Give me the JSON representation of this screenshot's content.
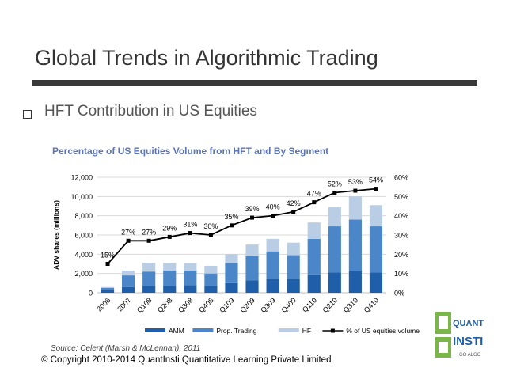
{
  "slide": {
    "title": "Global Trends in Algorithmic Trading",
    "bullet": "HFT Contribution in US Equities",
    "source": "Source: Celent (Marsh & McLennan), 2011",
    "copyright": "© Copyright 2010-2014 QuantInsti Quantitative Learning Private  Limited"
  },
  "logo": {
    "line1": "QUANT",
    "line2": "INSTI",
    "tagline": "GO ALGO"
  },
  "chart_data": {
    "type": "bar",
    "title": "Percentage of US Equities Volume from HFT and By Segment",
    "ylabel": "ADV shares (millions)",
    "categories": [
      "2006",
      "2007",
      "Q108",
      "Q208",
      "Q308",
      "Q408",
      "Q109",
      "Q209",
      "Q309",
      "Q409",
      "Q110",
      "Q210",
      "Q310",
      "Q410"
    ],
    "ylim": [
      0,
      12000
    ],
    "y_ticks": [
      "0",
      "2,000",
      "4,000",
      "6,000",
      "8,000",
      "10,000",
      "12,000"
    ],
    "y2lim": [
      0,
      60
    ],
    "y2_ticks": [
      "0%",
      "10%",
      "20%",
      "30%",
      "40%",
      "50%",
      "60%"
    ],
    "stacked": true,
    "series": [
      {
        "name": "AMM",
        "color": "#1f5faa",
        "values": [
          300,
          600,
          700,
          700,
          800,
          700,
          1000,
          1300,
          1400,
          1400,
          1900,
          2100,
          2300,
          2100
        ]
      },
      {
        "name": "Prop. Trading",
        "color": "#4a86c8",
        "values": [
          200,
          1200,
          1500,
          1600,
          1500,
          1300,
          2100,
          2500,
          2900,
          2500,
          3700,
          4800,
          5300,
          4800
        ]
      },
      {
        "name": "HF",
        "color": "#b9cde5",
        "values": [
          100,
          500,
          900,
          800,
          800,
          800,
          900,
          1200,
          1300,
          1300,
          1700,
          2000,
          2400,
          2200
        ]
      }
    ],
    "line": {
      "name": "% of US equities volume",
      "color": "#000000",
      "values": [
        15,
        27,
        27,
        29,
        31,
        30,
        35,
        39,
        40,
        42,
        47,
        52,
        53,
        54
      ],
      "labels": [
        "15%",
        "27%",
        "27%",
        "29%",
        "31%",
        "30%",
        "35%",
        "39%",
        "40%",
        "42%",
        "47%",
        "52%",
        "53%",
        "54%"
      ]
    },
    "legend": {
      "placement": "bottom"
    },
    "grid": true
  }
}
